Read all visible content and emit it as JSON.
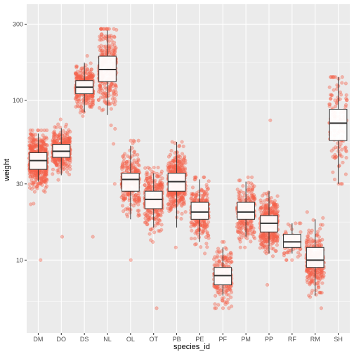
{
  "chart_data": {
    "type": "boxplot",
    "xlabel": "species_id",
    "ylabel": "weight",
    "y_scale": "log10",
    "ylim": [
      3.5,
      400
    ],
    "y_ticks": [
      10,
      30,
      100,
      300
    ],
    "y_tick_labels": [
      "10",
      "30",
      "100",
      "300"
    ],
    "grid": true,
    "legend": "none",
    "overlay": "jittered points",
    "colors": {
      "panel_background": "#ebebeb",
      "grid": "#ffffff",
      "points": "#f4624a",
      "box_fill": "#ffffff",
      "box_line": "#333333"
    },
    "categories": [
      "DM",
      "DO",
      "DS",
      "NL",
      "OL",
      "OT",
      "PB",
      "PE",
      "PF",
      "PM",
      "PP",
      "RF",
      "RM",
      "SH"
    ],
    "boxes": [
      {
        "species": "DM",
        "whisker_low": 31,
        "q1": 37,
        "median": 42,
        "q3": 47,
        "whisker_high": 62,
        "point_min": 10,
        "point_max": 65,
        "n": 520
      },
      {
        "species": "DO",
        "whisker_low": 34,
        "q1": 44,
        "median": 48,
        "q3": 53,
        "whisker_high": 67,
        "point_min": 14,
        "point_max": 76,
        "n": 380
      },
      {
        "species": "DS",
        "whisker_low": 84,
        "q1": 110,
        "median": 121,
        "q3": 133,
        "whisker_high": 172,
        "point_min": 14,
        "point_max": 190,
        "n": 320
      },
      {
        "species": "NL",
        "whisker_low": 81,
        "q1": 131,
        "median": 156,
        "q3": 189,
        "whisker_high": 274,
        "point_min": 30,
        "point_max": 280,
        "n": 300
      },
      {
        "species": "OL",
        "whisker_low": 18,
        "q1": 27,
        "median": 32,
        "q3": 35,
        "whisker_high": 52,
        "point_min": 10,
        "point_max": 56,
        "n": 280
      },
      {
        "species": "OT",
        "whisker_low": 16,
        "q1": 21,
        "median": 24,
        "q3": 27,
        "whisker_high": 35,
        "point_min": 5,
        "point_max": 38,
        "n": 300
      },
      {
        "species": "PB",
        "whisker_low": 16,
        "q1": 27,
        "median": 31,
        "q3": 35,
        "whisker_high": 55,
        "point_min": 12,
        "point_max": 55,
        "n": 420
      },
      {
        "species": "PE",
        "whisker_low": 13,
        "q1": 18,
        "median": 20,
        "q3": 23,
        "whisker_high": 32,
        "point_min": 11,
        "point_max": 33,
        "n": 280
      },
      {
        "species": "PF",
        "whisker_low": 6,
        "q1": 7,
        "median": 8,
        "q3": 9,
        "whisker_high": 12,
        "point_min": 5,
        "point_max": 13,
        "n": 220
      },
      {
        "species": "PM",
        "whisker_low": 14,
        "q1": 18,
        "median": 20,
        "q3": 23,
        "whisker_high": 31,
        "point_min": 12,
        "point_max": 33,
        "n": 260
      },
      {
        "species": "PP",
        "whisker_low": 11,
        "q1": 15,
        "median": 17,
        "q3": 19,
        "whisker_high": 27,
        "point_min": 7,
        "point_max": 75,
        "n": 360
      },
      {
        "species": "RF",
        "whisker_low": 11,
        "q1": 12,
        "median": 13,
        "q3": 14.5,
        "whisker_high": 17,
        "point_min": 10,
        "point_max": 17,
        "n": 60
      },
      {
        "species": "RM",
        "whisker_low": 6,
        "q1": 9,
        "median": 10,
        "q3": 12,
        "whisker_high": 18,
        "point_min": 5,
        "point_max": 20,
        "n": 280
      },
      {
        "species": "SH",
        "whisker_low": 30,
        "q1": 56,
        "median": 72,
        "q3": 88,
        "whisker_high": 140,
        "point_min": 30,
        "point_max": 140,
        "n": 120
      }
    ]
  }
}
